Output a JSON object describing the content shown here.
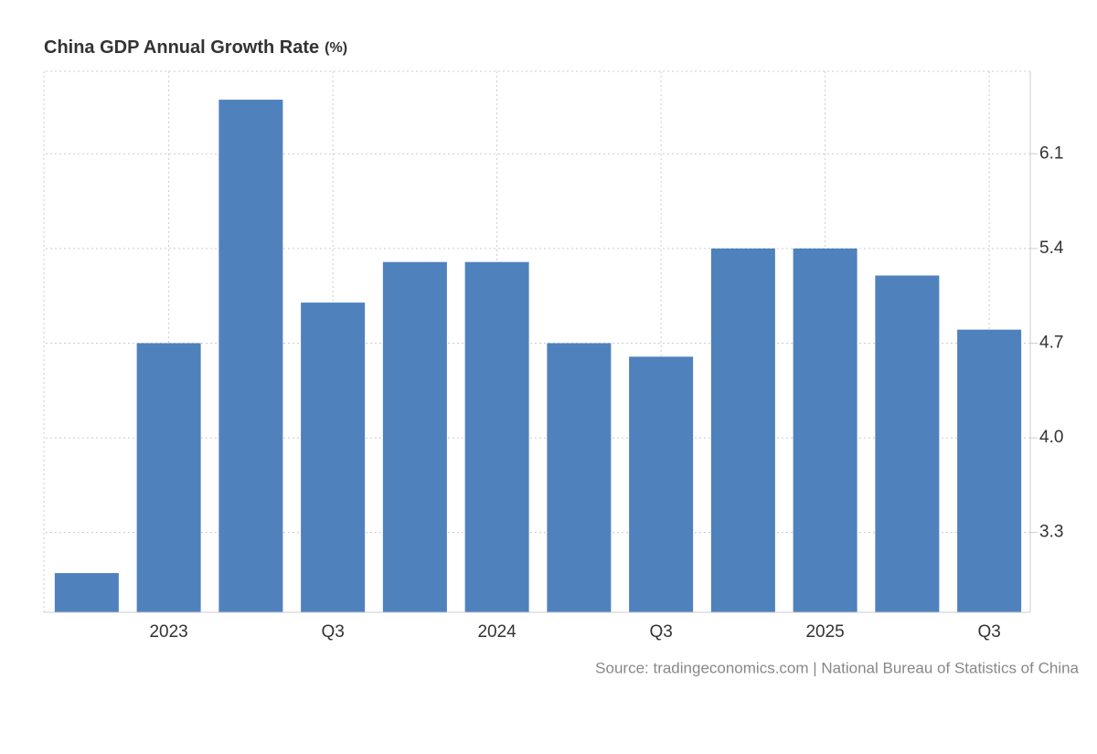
{
  "chart_data": {
    "type": "bar",
    "title": "China GDP Annual Growth Rate",
    "unit": "(%)",
    "source": "Source: tradingeconomics.com | National Bureau of Statistics of China",
    "categories": [
      null,
      "2023",
      null,
      "Q3",
      null,
      "2024",
      null,
      "Q3",
      null,
      "2025",
      null,
      "Q3"
    ],
    "values": [
      3.0,
      4.7,
      6.5,
      5.0,
      5.3,
      5.3,
      4.7,
      4.6,
      5.4,
      5.4,
      5.2,
      4.8
    ],
    "color": "#4f81bd",
    "ylim": [
      2.71,
      6.71
    ],
    "yticks": [
      3.3,
      {
        "value": 4,
        "label": "4.0"
      },
      4.7,
      5.4,
      6.1
    ],
    "grid": true
  }
}
